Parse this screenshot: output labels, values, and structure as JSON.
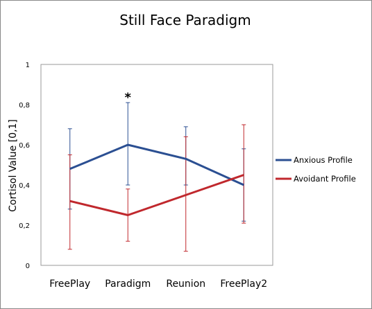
{
  "chart_data": {
    "type": "line",
    "title": "Still Face Paradigm",
    "xlabel": "",
    "ylabel": "Cortisol Value [0,1]",
    "ylim": [
      0,
      1
    ],
    "yticks": [
      0,
      0.2,
      0.4,
      0.6,
      0.8,
      1
    ],
    "ytick_labels": [
      "0",
      "0,2",
      "0,4",
      "0,6",
      "0,8",
      "1"
    ],
    "categories": [
      "FreePlay",
      "Paradigm",
      "Reunion",
      "FreePlay2"
    ],
    "grid": false,
    "legend_position": "right",
    "annotations": [
      {
        "text": "*",
        "category": "Paradigm",
        "y": 0.85
      }
    ],
    "series": [
      {
        "name": "Anxious Profile",
        "color": "#2b4f92",
        "values": [
          0.48,
          0.6,
          0.53,
          0.4
        ],
        "error_low": [
          0.28,
          0.4,
          0.4,
          0.22
        ],
        "error_high": [
          0.68,
          0.81,
          0.69,
          0.58
        ]
      },
      {
        "name": "Avoidant Profile",
        "color": "#c0282d",
        "values": [
          0.32,
          0.25,
          0.35,
          0.45
        ],
        "error_low": [
          0.08,
          0.12,
          0.07,
          0.21
        ],
        "error_high": [
          0.55,
          0.38,
          0.64,
          0.7
        ]
      }
    ]
  }
}
